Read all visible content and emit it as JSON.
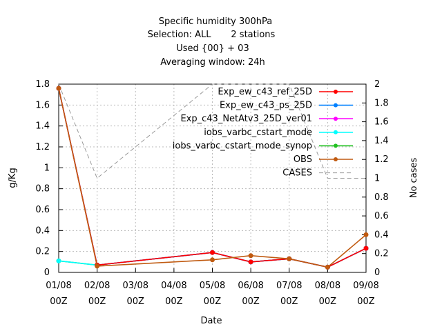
{
  "chart_data": {
    "type": "line",
    "title_lines": [
      "Specific humidity 300hPa",
      "Selection: ALL       2 stations",
      "Used {00} + 03",
      "Averaging window: 24h"
    ],
    "xlabel": "Date",
    "ylabel": "g/Kg",
    "y2label": "No cases",
    "x_ticks": [
      {
        "d": "01/08",
        "h": "00Z"
      },
      {
        "d": "02/08",
        "h": "00Z"
      },
      {
        "d": "03/08",
        "h": "00Z"
      },
      {
        "d": "04/08",
        "h": "00Z"
      },
      {
        "d": "05/08",
        "h": "00Z"
      },
      {
        "d": "06/08",
        "h": "00Z"
      },
      {
        "d": "07/08",
        "h": "00Z"
      },
      {
        "d": "08/08",
        "h": "00Z"
      },
      {
        "d": "09/08",
        "h": "00Z"
      }
    ],
    "ylim": [
      0,
      1.8
    ],
    "y_ticks": [
      "0",
      "0.2",
      "0.4",
      "0.6",
      "0.8",
      "1",
      "1.2",
      "1.4",
      "1.6",
      "1.8"
    ],
    "y2lim": [
      0,
      2
    ],
    "y2_ticks": [
      "0",
      "0.2",
      "0.4",
      "0.6",
      "0.8",
      "1",
      "1.2",
      "1.4",
      "1.6",
      "1.8",
      "2"
    ],
    "grid": true,
    "legend_position": "top-right",
    "series": [
      {
        "name": "Exp_ew_c43_ref_25D",
        "color": "#ff0000",
        "axis": "y1",
        "points": [
          [
            0,
            1.76
          ],
          [
            1,
            0.07
          ],
          [
            4,
            0.19
          ],
          [
            5,
            0.1
          ],
          [
            6,
            0.13
          ],
          [
            7,
            0.05
          ],
          [
            8,
            0.23
          ]
        ]
      },
      {
        "name": "Exp_ew_c43_ps_25D",
        "color": "#0080ff",
        "axis": "y1",
        "points": [
          [
            0,
            1.76
          ],
          [
            1,
            0.07
          ],
          [
            4,
            0.19
          ],
          [
            5,
            0.1
          ],
          [
            6,
            0.13
          ],
          [
            7,
            0.05
          ],
          [
            8,
            0.23
          ]
        ]
      },
      {
        "name": "Exp_c43_NetAtv3_25D_ver01",
        "color": "#ff00ff",
        "axis": "y1",
        "points": [
          [
            0,
            1.76
          ],
          [
            1,
            0.07
          ],
          [
            4,
            0.19
          ],
          [
            5,
            0.1
          ],
          [
            6,
            0.13
          ],
          [
            7,
            0.05
          ],
          [
            8,
            0.23
          ]
        ]
      },
      {
        "name": "iobs_varbc_cstart_mode",
        "color": "#00ffff",
        "axis": "y1",
        "points": [
          [
            0,
            0.11
          ],
          [
            1,
            0.07
          ],
          [
            4,
            0.19
          ],
          [
            5,
            0.1
          ],
          [
            6,
            0.13
          ],
          [
            7,
            0.05
          ],
          [
            8,
            0.23
          ]
        ]
      },
      {
        "name": "iobs_varbc_cstart_mode_synop",
        "color": "#20c020",
        "axis": "y1",
        "points": [
          [
            0,
            0.11
          ],
          [
            1,
            0.07
          ],
          [
            4,
            0.19
          ],
          [
            5,
            0.1
          ],
          [
            6,
            0.13
          ],
          [
            7,
            0.05
          ],
          [
            8,
            0.23
          ]
        ]
      },
      {
        "name": "OBS",
        "color": "#c05a10",
        "axis": "y1",
        "points": [
          [
            0,
            1.76
          ],
          [
            1,
            0.06
          ],
          [
            4,
            0.12
          ],
          [
            5,
            0.16
          ],
          [
            6,
            0.13
          ],
          [
            7,
            0.05
          ],
          [
            8,
            0.36
          ]
        ]
      },
      {
        "name": "CASES",
        "color": "#999999",
        "axis": "y2",
        "dashed": true,
        "no_markers": true,
        "points": [
          [
            0,
            2
          ],
          [
            1,
            1
          ],
          [
            4,
            2
          ],
          [
            5,
            2
          ],
          [
            6,
            2
          ],
          [
            7,
            1
          ],
          [
            8,
            1
          ]
        ]
      }
    ]
  }
}
